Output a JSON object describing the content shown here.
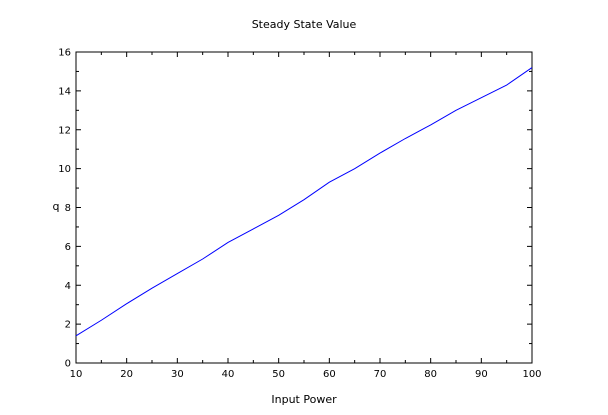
{
  "chart_data": {
    "type": "line",
    "title": "Steady State Value",
    "xlabel": "Input Power",
    "ylabel": "q",
    "xlim": [
      10,
      100
    ],
    "ylim": [
      0,
      16
    ],
    "xticks": [
      10,
      20,
      30,
      40,
      50,
      60,
      70,
      80,
      90,
      100
    ],
    "yticks": [
      0,
      2,
      4,
      6,
      8,
      10,
      12,
      14,
      16
    ],
    "grid": false,
    "legend": "none",
    "series": [
      {
        "color": "#0000ff",
        "x": [
          10,
          15,
          20,
          25,
          30,
          35,
          40,
          45,
          50,
          55,
          60,
          65,
          70,
          75,
          80,
          85,
          90,
          95,
          100
        ],
        "y": [
          1.4,
          2.2,
          3.05,
          3.85,
          4.6,
          5.35,
          6.2,
          6.9,
          7.6,
          8.4,
          9.3,
          10.0,
          10.8,
          11.55,
          12.25,
          13.0,
          13.65,
          14.3,
          15.2
        ]
      }
    ]
  }
}
